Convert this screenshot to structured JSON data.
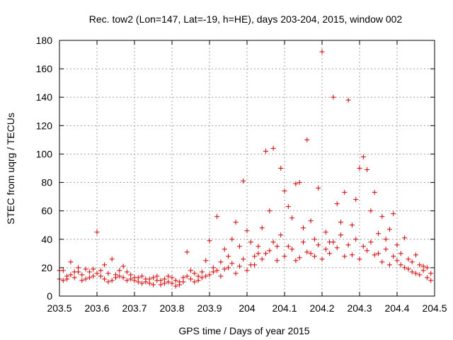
{
  "chart_data": {
    "type": "scatter",
    "title": "Rec. tow2 (Lon=147, Lat=-19, h=HE), days 203-204, 2015, window 002",
    "xlabel": "GPS time / Days of year 2015",
    "ylabel": "STEC from uqrg / TECUs",
    "xlim": [
      203.5,
      204.5
    ],
    "ylim": [
      0,
      180
    ],
    "grid": true,
    "marker": "+",
    "color": "#d00000",
    "x_ticks": [
      {
        "value": 203.5,
        "label": "203.5"
      },
      {
        "value": 203.6,
        "label": "203.6"
      },
      {
        "value": 203.7,
        "label": "203.7"
      },
      {
        "value": 203.8,
        "label": "203.8"
      },
      {
        "value": 203.9,
        "label": "203.9"
      },
      {
        "value": 204.0,
        "label": "204"
      },
      {
        "value": 204.1,
        "label": "204.1"
      },
      {
        "value": 204.2,
        "label": "204.2"
      },
      {
        "value": 204.3,
        "label": "204.3"
      },
      {
        "value": 204.4,
        "label": "204.4"
      },
      {
        "value": 204.5,
        "label": "204.5"
      }
    ],
    "y_ticks": [
      {
        "value": 0,
        "label": "0"
      },
      {
        "value": 20,
        "label": "20"
      },
      {
        "value": 40,
        "label": "40"
      },
      {
        "value": 60,
        "label": "60"
      },
      {
        "value": 80,
        "label": "80"
      },
      {
        "value": 100,
        "label": "100"
      },
      {
        "value": 120,
        "label": "120"
      },
      {
        "value": 140,
        "label": "140"
      },
      {
        "value": 160,
        "label": "160"
      },
      {
        "value": 180,
        "label": "180"
      }
    ],
    "points": [
      [
        203.5,
        12
      ],
      [
        203.51,
        18
      ],
      [
        203.52,
        14
      ],
      [
        203.53,
        24
      ],
      [
        203.54,
        13
      ],
      [
        203.55,
        20
      ],
      [
        203.56,
        15
      ],
      [
        203.57,
        12
      ],
      [
        203.58,
        17
      ],
      [
        203.59,
        19
      ],
      [
        203.6,
        45
      ],
      [
        203.61,
        14
      ],
      [
        203.62,
        22
      ],
      [
        203.63,
        16
      ],
      [
        203.64,
        26
      ],
      [
        203.65,
        13
      ],
      [
        203.66,
        18
      ],
      [
        203.67,
        21
      ],
      [
        203.68,
        11
      ],
      [
        203.69,
        15
      ],
      [
        203.7,
        13
      ],
      [
        203.71,
        10
      ],
      [
        203.72,
        14
      ],
      [
        203.73,
        12
      ],
      [
        203.74,
        9
      ],
      [
        203.75,
        13
      ],
      [
        203.76,
        11
      ],
      [
        203.77,
        8
      ],
      [
        203.78,
        12
      ],
      [
        203.79,
        10
      ],
      [
        203.8,
        9
      ],
      [
        203.81,
        11
      ],
      [
        203.82,
        8
      ],
      [
        203.83,
        13
      ],
      [
        203.84,
        31
      ],
      [
        203.85,
        12
      ],
      [
        203.86,
        10
      ],
      [
        203.87,
        14
      ],
      [
        203.88,
        17
      ],
      [
        203.89,
        25
      ],
      [
        203.9,
        39
      ],
      [
        203.91,
        20
      ],
      [
        203.92,
        56
      ],
      [
        203.93,
        24
      ],
      [
        203.94,
        33
      ],
      [
        203.95,
        28
      ],
      [
        203.96,
        40
      ],
      [
        203.97,
        52
      ],
      [
        203.98,
        35
      ],
      [
        203.99,
        81
      ],
      [
        204.0,
        46
      ],
      [
        204.01,
        38
      ],
      [
        204.02,
        22
      ],
      [
        204.03,
        30
      ],
      [
        204.04,
        48
      ],
      [
        204.05,
        102
      ],
      [
        204.06,
        60
      ],
      [
        204.07,
        104
      ],
      [
        204.08,
        35
      ],
      [
        204.09,
        90
      ],
      [
        204.1,
        74
      ],
      [
        204.11,
        63
      ],
      [
        204.12,
        55
      ],
      [
        204.13,
        79
      ],
      [
        204.14,
        80
      ],
      [
        204.15,
        48
      ],
      [
        204.16,
        110
      ],
      [
        204.17,
        53
      ],
      [
        204.18,
        40
      ],
      [
        204.19,
        76
      ],
      [
        204.2,
        172
      ],
      [
        204.21,
        45
      ],
      [
        204.22,
        38
      ],
      [
        204.23,
        140
      ],
      [
        204.24,
        65
      ],
      [
        204.25,
        52
      ],
      [
        204.26,
        73
      ],
      [
        204.27,
        138
      ],
      [
        204.28,
        50
      ],
      [
        204.29,
        68
      ],
      [
        204.3,
        90
      ],
      [
        204.31,
        98
      ],
      [
        204.32,
        89
      ],
      [
        204.33,
        60
      ],
      [
        204.34,
        73
      ],
      [
        204.35,
        44
      ],
      [
        204.36,
        56
      ],
      [
        204.37,
        40
      ],
      [
        204.38,
        47
      ],
      [
        204.39,
        58
      ],
      [
        204.4,
        36
      ],
      [
        204.41,
        30
      ],
      [
        204.42,
        41
      ],
      [
        204.43,
        26
      ],
      [
        204.44,
        24
      ],
      [
        204.45,
        29
      ],
      [
        204.46,
        22
      ],
      [
        204.47,
        18
      ],
      [
        204.48,
        20
      ],
      [
        204.49,
        16
      ],
      [
        203.5,
        18
      ],
      [
        203.52,
        12
      ],
      [
        203.54,
        17
      ],
      [
        203.56,
        11
      ],
      [
        203.58,
        13
      ],
      [
        203.6,
        16
      ],
      [
        203.62,
        12
      ],
      [
        203.64,
        11
      ],
      [
        203.66,
        14
      ],
      [
        203.68,
        17
      ],
      [
        203.7,
        11
      ],
      [
        203.72,
        9
      ],
      [
        203.74,
        12
      ],
      [
        203.76,
        14
      ],
      [
        203.78,
        9
      ],
      [
        203.8,
        13
      ],
      [
        203.82,
        10
      ],
      [
        203.84,
        14
      ],
      [
        203.86,
        16
      ],
      [
        203.88,
        13
      ],
      [
        203.9,
        15
      ],
      [
        203.92,
        18
      ],
      [
        203.94,
        19
      ],
      [
        203.96,
        23
      ],
      [
        203.98,
        21
      ],
      [
        204.0,
        18
      ],
      [
        204.02,
        28
      ],
      [
        204.04,
        26
      ],
      [
        204.06,
        32
      ],
      [
        204.08,
        25
      ],
      [
        204.1,
        28
      ],
      [
        204.12,
        33
      ],
      [
        204.14,
        27
      ],
      [
        204.16,
        31
      ],
      [
        204.18,
        28
      ],
      [
        204.2,
        26
      ],
      [
        204.22,
        30
      ],
      [
        204.24,
        34
      ],
      [
        204.26,
        28
      ],
      [
        204.28,
        29
      ],
      [
        204.3,
        26
      ],
      [
        204.32,
        32
      ],
      [
        204.34,
        29
      ],
      [
        204.36,
        24
      ],
      [
        204.38,
        22
      ],
      [
        204.4,
        25
      ],
      [
        204.42,
        20
      ],
      [
        204.44,
        17
      ],
      [
        204.46,
        15
      ],
      [
        204.48,
        13
      ],
      [
        203.51,
        11
      ],
      [
        203.53,
        15
      ],
      [
        203.55,
        17
      ],
      [
        203.57,
        19
      ],
      [
        203.59,
        14
      ],
      [
        203.61,
        18
      ],
      [
        203.63,
        10
      ],
      [
        203.65,
        15
      ],
      [
        203.67,
        13
      ],
      [
        203.69,
        12
      ],
      [
        203.71,
        13
      ],
      [
        203.73,
        10
      ],
      [
        203.75,
        8
      ],
      [
        203.77,
        11
      ],
      [
        203.79,
        14
      ],
      [
        203.81,
        7
      ],
      [
        203.83,
        10
      ],
      [
        203.85,
        18
      ],
      [
        203.87,
        11
      ],
      [
        203.89,
        14
      ],
      [
        203.91,
        17
      ],
      [
        203.93,
        14
      ],
      [
        203.95,
        20
      ],
      [
        203.97,
        16
      ],
      [
        203.99,
        26
      ],
      [
        204.01,
        22
      ],
      [
        204.03,
        35
      ],
      [
        204.05,
        30
      ],
      [
        204.07,
        38
      ],
      [
        204.09,
        43
      ],
      [
        204.11,
        35
      ],
      [
        204.13,
        25
      ],
      [
        204.15,
        38
      ],
      [
        204.17,
        30
      ],
      [
        204.19,
        36
      ],
      [
        204.21,
        33
      ],
      [
        204.23,
        38
      ],
      [
        204.25,
        43
      ],
      [
        204.27,
        36
      ],
      [
        204.29,
        40
      ],
      [
        204.31,
        35
      ],
      [
        204.33,
        38
      ],
      [
        204.35,
        30
      ],
      [
        204.37,
        33
      ],
      [
        204.39,
        28
      ],
      [
        204.41,
        22
      ],
      [
        204.43,
        19
      ],
      [
        204.45,
        16
      ],
      [
        204.47,
        21
      ],
      [
        204.49,
        11
      ]
    ]
  }
}
